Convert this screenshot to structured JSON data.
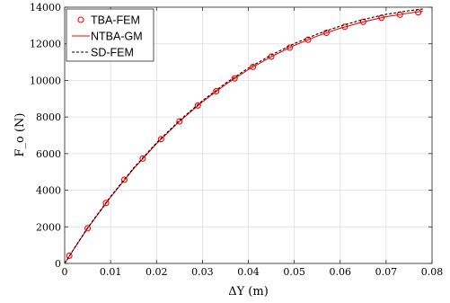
{
  "chart_data": {
    "type": "line",
    "xlabel": "ΔY (m)",
    "ylabel": "F_o (N)",
    "xlim": [
      0,
      0.08
    ],
    "ylim": [
      0,
      14000
    ],
    "xticks": [
      0,
      0.01,
      0.02,
      0.03,
      0.04,
      0.05,
      0.06,
      0.07,
      0.08
    ],
    "xtick_labels": [
      "0",
      "0.01",
      "0.02",
      "0.03",
      "0.04",
      "0.05",
      "0.06",
      "0.07",
      "0.08"
    ],
    "yticks": [
      0,
      2000,
      4000,
      6000,
      8000,
      10000,
      12000,
      14000
    ],
    "ytick_labels": [
      "0",
      "2000",
      "4000",
      "6000",
      "8000",
      "10000",
      "12000",
      "14000"
    ],
    "grid": true,
    "legend_position": "top-left",
    "series": [
      {
        "name": "TBA-FEM",
        "style": "markers",
        "marker": "circle",
        "color": "#ff0000",
        "x": [
          0.001,
          0.005,
          0.009,
          0.013,
          0.017,
          0.021,
          0.025,
          0.029,
          0.033,
          0.037,
          0.041,
          0.045,
          0.049,
          0.053,
          0.057,
          0.061,
          0.065,
          0.069,
          0.073,
          0.077
        ],
        "y": [
          420,
          1920,
          3300,
          4570,
          5730,
          6790,
          7760,
          8630,
          9410,
          10110,
          10740,
          11300,
          11790,
          12220,
          12600,
          12930,
          13200,
          13420,
          13590,
          13720
        ]
      },
      {
        "name": "NTBA-GM",
        "style": "solid",
        "color": "#ff0000",
        "x": [
          0,
          0.002,
          0.005,
          0.01,
          0.015,
          0.02,
          0.025,
          0.03,
          0.035,
          0.04,
          0.045,
          0.05,
          0.055,
          0.06,
          0.065,
          0.07,
          0.075,
          0.078
        ],
        "y": [
          0,
          780,
          1920,
          3620,
          5170,
          6540,
          7760,
          8830,
          9770,
          10590,
          11300,
          11910,
          12420,
          12850,
          13200,
          13480,
          13680,
          13780
        ]
      },
      {
        "name": "SD-FEM",
        "style": "dashed",
        "color": "#000000",
        "x": [
          0,
          0.002,
          0.005,
          0.01,
          0.015,
          0.02,
          0.025,
          0.03,
          0.035,
          0.04,
          0.045,
          0.05,
          0.055,
          0.06,
          0.065,
          0.07,
          0.075,
          0.078
        ],
        "y": [
          0,
          790,
          1950,
          3660,
          5210,
          6590,
          7810,
          8890,
          9840,
          10670,
          11390,
          12010,
          12530,
          12970,
          13330,
          13610,
          13810,
          13900
        ]
      }
    ]
  }
}
